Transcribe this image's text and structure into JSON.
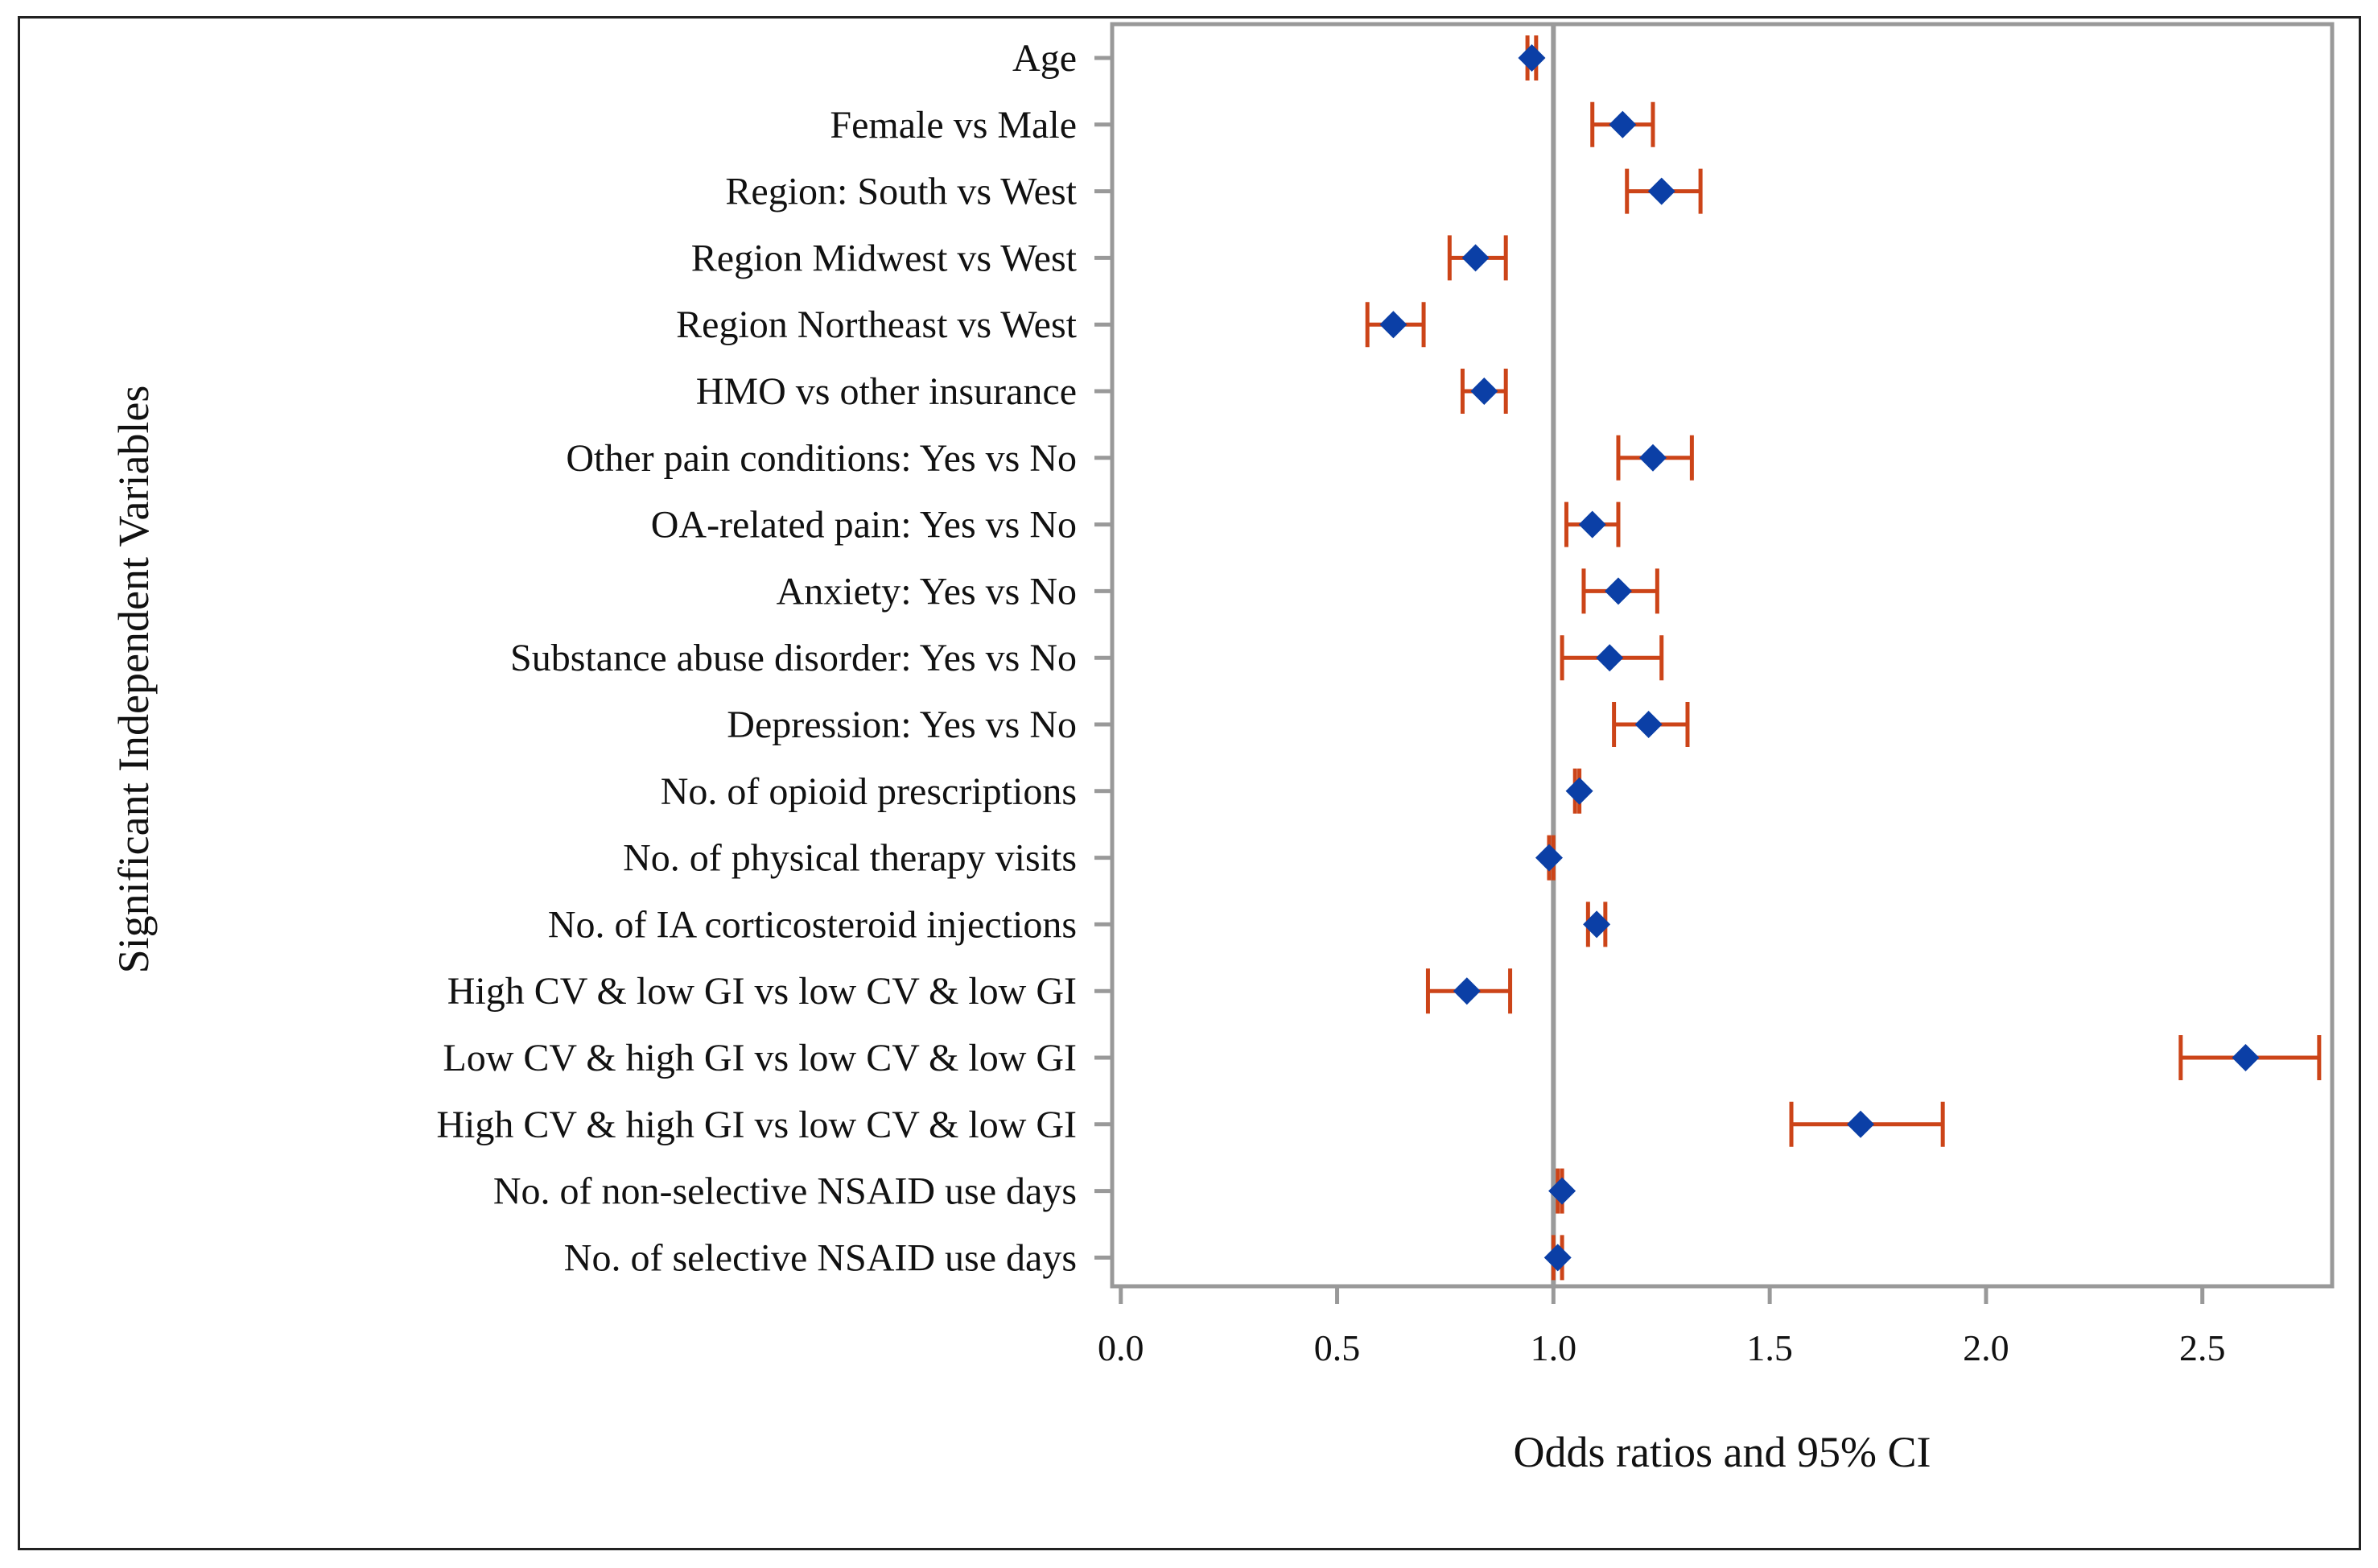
{
  "chart_data": {
    "type": "forest",
    "title": "",
    "xlabel": "Odds ratios and 95% CI",
    "ylabel": "Significant Independent Variables",
    "xlim": [
      -0.02,
      2.8
    ],
    "xticks": [
      "0.0",
      "0.5",
      "1.0",
      "1.5",
      "2.0",
      "2.5"
    ],
    "reference_line": 1.0,
    "marker_color": "#0b3fa6",
    "ci_color": "#cc4418",
    "reference_color": "#9a9a9a",
    "rows": [
      {
        "label": "Age",
        "or": 0.95,
        "lo": 0.94,
        "hi": 0.96
      },
      {
        "label": "Female vs Male",
        "or": 1.16,
        "lo": 1.09,
        "hi": 1.23
      },
      {
        "label": "Region: South vs West",
        "or": 1.25,
        "lo": 1.17,
        "hi": 1.34
      },
      {
        "label": "Region Midwest vs West",
        "or": 0.82,
        "lo": 0.76,
        "hi": 0.89
      },
      {
        "label": "Region Northeast vs West",
        "or": 0.63,
        "lo": 0.57,
        "hi": 0.7
      },
      {
        "label": "HMO vs other insurance",
        "or": 0.84,
        "lo": 0.79,
        "hi": 0.89
      },
      {
        "label": "Other pain conditions: Yes vs No",
        "or": 1.23,
        "lo": 1.15,
        "hi": 1.32
      },
      {
        "label": "OA-related pain: Yes vs No",
        "or": 1.09,
        "lo": 1.03,
        "hi": 1.15
      },
      {
        "label": "Anxiety: Yes vs No",
        "or": 1.15,
        "lo": 1.07,
        "hi": 1.24
      },
      {
        "label": "Substance abuse disorder: Yes vs No",
        "or": 1.13,
        "lo": 1.02,
        "hi": 1.25
      },
      {
        "label": "Depression: Yes vs No",
        "or": 1.22,
        "lo": 1.14,
        "hi": 1.31
      },
      {
        "label": "No. of opioid prescriptions",
        "or": 1.06,
        "lo": 1.05,
        "hi": 1.06
      },
      {
        "label": "No. of physical therapy visits",
        "or": 0.99,
        "lo": 0.99,
        "hi": 1.0
      },
      {
        "label": "No. of IA corticosteroid injections",
        "or": 1.1,
        "lo": 1.08,
        "hi": 1.12
      },
      {
        "label": "High CV & low GI vs low CV & low GI",
        "or": 0.8,
        "lo": 0.71,
        "hi": 0.9
      },
      {
        "label": "Low CV & high GI vs low CV & low GI",
        "or": 2.6,
        "lo": 2.45,
        "hi": 2.77
      },
      {
        "label": "High CV & high GI vs low CV & low GI",
        "or": 1.71,
        "lo": 1.55,
        "hi": 1.9
      },
      {
        "label": "No. of non-selective NSAID use days",
        "or": 1.02,
        "lo": 1.01,
        "hi": 1.02
      },
      {
        "label": "No. of selective NSAID use days",
        "or": 1.01,
        "lo": 1.0,
        "hi": 1.02
      }
    ]
  }
}
